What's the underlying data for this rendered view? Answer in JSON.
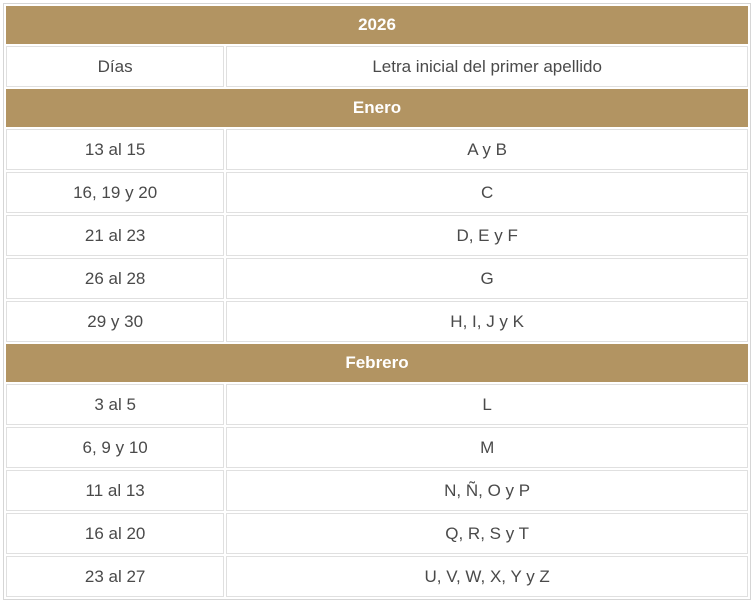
{
  "table": {
    "year_header": "2026",
    "columns": {
      "days": "Días",
      "letter": "Letra inicial del primer apellido"
    },
    "sections": [
      {
        "month": "Enero",
        "rows": [
          {
            "days": "13 al 15",
            "letters": "A y B"
          },
          {
            "days": "16, 19 y 20",
            "letters": "C"
          },
          {
            "days": "21 al 23",
            "letters": "D, E y F"
          },
          {
            "days": "26 al 28",
            "letters": "G"
          },
          {
            "days": "29 y 30",
            "letters": "H, I, J y K"
          }
        ]
      },
      {
        "month": "Febrero",
        "rows": [
          {
            "days": "3 al 5",
            "letters": "L"
          },
          {
            "days": "6, 9 y 10",
            "letters": "M"
          },
          {
            "days": "11 al 13",
            "letters": "N, Ñ, O y P"
          },
          {
            "days": "16 al 20",
            "letters": "Q, R, S y T"
          },
          {
            "days": "23 al 27",
            "letters": "U, V, W, X, Y y Z"
          }
        ]
      }
    ],
    "colors": {
      "band_background": "#b29462",
      "band_text": "#ffffff",
      "body_text": "#4a4a4a",
      "border": "#e0e0e0",
      "row_background": "#ffffff"
    }
  }
}
